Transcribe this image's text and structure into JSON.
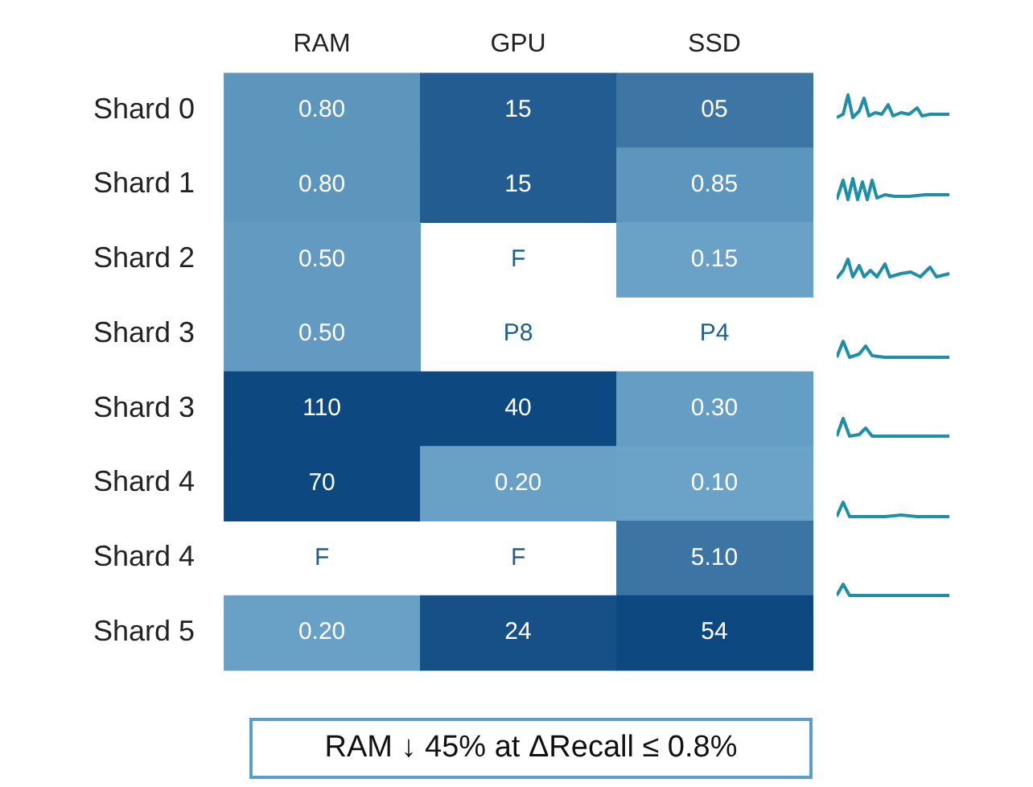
{
  "chart_data": {
    "type": "heatmap",
    "categories": [
      "RAM",
      "GPU",
      "SSD"
    ],
    "y_categories": [
      "Shard 0",
      "Shard 1",
      "Shard 2",
      "Shard 3",
      "Shard 3",
      "Shard 4",
      "Shard 4",
      "Shard 5"
    ],
    "cells": [
      [
        0.8,
        15,
        5
      ],
      [
        0.8,
        15,
        0.85
      ],
      [
        0.5,
        null,
        0.15
      ],
      [
        0.5,
        null,
        null
      ],
      [
        110,
        40,
        0.3
      ],
      [
        70,
        0.2,
        0.1
      ],
      [
        null,
        null,
        5.1
      ],
      [
        0.2,
        24,
        54
      ]
    ],
    "cell_labels": [
      [
        "0.80",
        "15",
        "05"
      ],
      [
        "0.80",
        "15",
        "0.85"
      ],
      [
        "0.50",
        "F",
        "0.15"
      ],
      [
        "0.50",
        "P8",
        "P4"
      ],
      [
        "110",
        "40",
        "0.30"
      ],
      [
        "70",
        "0.20",
        "0.10"
      ],
      [
        "F",
        "F",
        "5.10"
      ],
      [
        "0.20",
        "24",
        "54"
      ]
    ],
    "annotations": [
      "RAM ↓ 45% at ΔRecall ≤ 0.8%"
    ]
  }
}
